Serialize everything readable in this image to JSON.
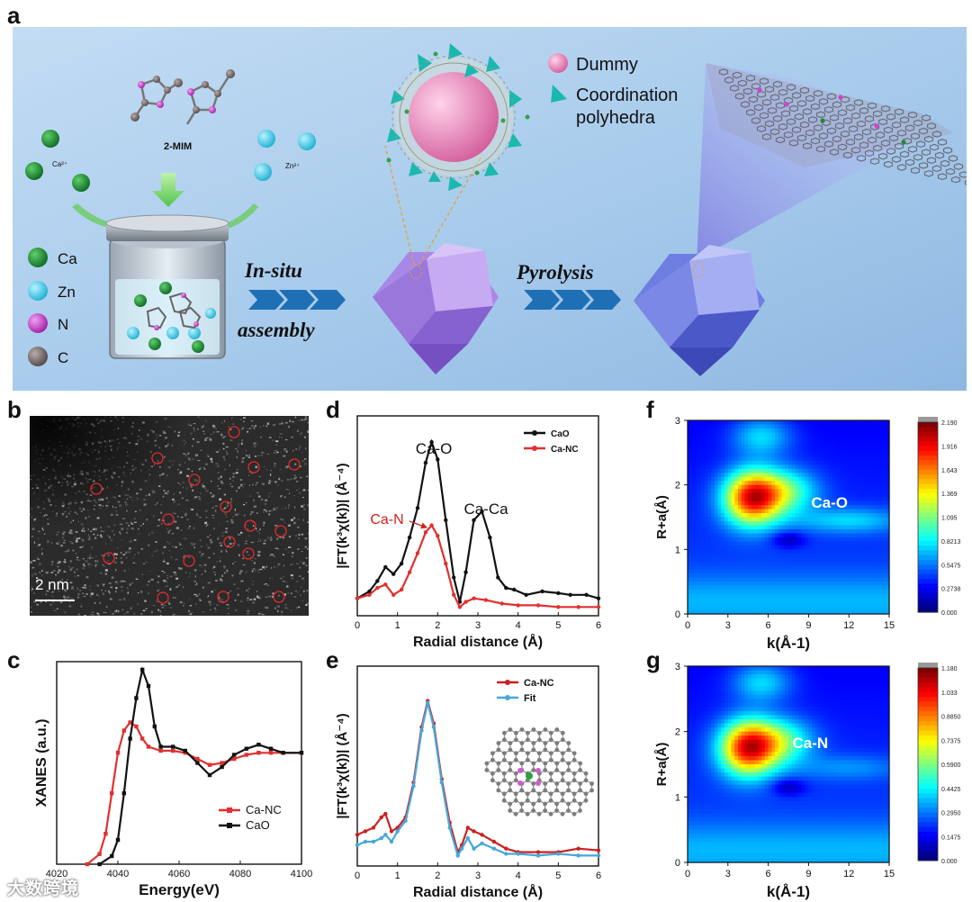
{
  "panel_labels": {
    "a": "a",
    "b": "b",
    "c": "c",
    "d": "d",
    "e": "e",
    "f": "f",
    "g": "g"
  },
  "panel_a": {
    "mim_label": "2-MIM",
    "ca_ion": "Ca²⁺",
    "zn_ion": "Zn²⁺",
    "legend_atoms": [
      {
        "label": "Ca",
        "color": "#1e8a3a"
      },
      {
        "label": "Zn",
        "color": "#3fc6de"
      },
      {
        "label": "N",
        "color": "#cc44cc"
      },
      {
        "label": "C",
        "color": "#7a6e6e"
      }
    ],
    "step1_line1": "In-situ",
    "step1_line2": "assembly",
    "step2": "Pyrolysis",
    "legend_dummy": "Dummy",
    "legend_coord_1": "Coordination",
    "legend_coord_2": "polyhedra",
    "colors": {
      "background": "#a9ccec",
      "arrow": "#1f6fb5",
      "dodeca": "#b38ee8",
      "dummy": "#e78bc0"
    }
  },
  "panel_b": {
    "scale_bar": "2 nm"
  },
  "chart_data": [
    {
      "panel": "c",
      "type": "line",
      "xlabel": "Energy(eV)",
      "ylabel": "XANES (a.u.)",
      "xlim": [
        4020,
        4100
      ],
      "xticks": [
        4020,
        4040,
        4060,
        4080,
        4100
      ],
      "series": [
        {
          "name": "Ca-NC",
          "color": "#e03030",
          "x": [
            4030,
            4034,
            4036,
            4038,
            4040,
            4042,
            4044,
            4046,
            4048,
            4050,
            4054,
            4058,
            4062,
            4066,
            4070,
            4074,
            4078,
            4082,
            4086,
            4090,
            4094,
            4100
          ],
          "y": [
            0.0,
            0.05,
            0.15,
            0.35,
            0.55,
            0.66,
            0.7,
            0.68,
            0.62,
            0.58,
            0.56,
            0.56,
            0.55,
            0.52,
            0.49,
            0.5,
            0.52,
            0.54,
            0.55,
            0.55,
            0.55,
            0.55
          ]
        },
        {
          "name": "CaO",
          "color": "#111111",
          "x": [
            4034,
            4038,
            4040,
            4042,
            4044,
            4046,
            4048,
            4050,
            4052,
            4054,
            4058,
            4062,
            4066,
            4070,
            4074,
            4078,
            4082,
            4086,
            4090,
            4094,
            4100
          ],
          "y": [
            0.0,
            0.04,
            0.12,
            0.35,
            0.62,
            0.82,
            0.96,
            0.88,
            0.68,
            0.58,
            0.58,
            0.56,
            0.5,
            0.44,
            0.48,
            0.54,
            0.57,
            0.59,
            0.57,
            0.55,
            0.55
          ]
        }
      ]
    },
    {
      "panel": "d",
      "type": "line",
      "xlabel": "Radial distance (Å)",
      "ylabel": "|FT(k³χ(k))| (Å⁻⁴)",
      "xlim": [
        0,
        6
      ],
      "xticks": [
        0,
        1,
        2,
        3,
        4,
        5,
        6
      ],
      "annotations": [
        "Ca-O",
        "Ca-Ca",
        "Ca-N"
      ],
      "series": [
        {
          "name": "CaO",
          "color": "#111111",
          "x": [
            0.0,
            0.3,
            0.5,
            0.7,
            0.9,
            1.1,
            1.3,
            1.5,
            1.7,
            1.85,
            2.0,
            2.2,
            2.4,
            2.55,
            2.7,
            2.9,
            3.1,
            3.3,
            3.5,
            3.7,
            3.9,
            4.2,
            4.6,
            5.0,
            5.3,
            5.7,
            6.0
          ],
          "y": [
            0.1,
            0.14,
            0.2,
            0.28,
            0.24,
            0.3,
            0.45,
            0.62,
            0.88,
            1.0,
            0.9,
            0.55,
            0.22,
            0.08,
            0.25,
            0.55,
            0.6,
            0.45,
            0.22,
            0.16,
            0.15,
            0.12,
            0.14,
            0.13,
            0.12,
            0.12,
            0.1
          ]
        },
        {
          "name": "Ca-NC",
          "color": "#e03030",
          "x": [
            0.0,
            0.3,
            0.5,
            0.7,
            0.9,
            1.1,
            1.3,
            1.5,
            1.7,
            1.85,
            2.0,
            2.2,
            2.4,
            2.55,
            2.7,
            2.9,
            3.2,
            3.6,
            4.0,
            4.5,
            5.0,
            5.5,
            6.0
          ],
          "y": [
            0.1,
            0.12,
            0.16,
            0.18,
            0.12,
            0.15,
            0.25,
            0.36,
            0.48,
            0.52,
            0.46,
            0.3,
            0.12,
            0.05,
            0.08,
            0.1,
            0.09,
            0.07,
            0.06,
            0.06,
            0.05,
            0.05,
            0.05
          ]
        }
      ]
    },
    {
      "panel": "e",
      "type": "line",
      "xlabel": "Radial distance (Å)",
      "ylabel": "|FT(k³χ(k))| (Å⁻⁴)",
      "xlim": [
        0,
        6
      ],
      "xticks": [
        0,
        1,
        2,
        3,
        4,
        5,
        6
      ],
      "series": [
        {
          "name": "Ca-NC",
          "color": "#cc2020",
          "x": [
            0.0,
            0.2,
            0.4,
            0.6,
            0.7,
            0.85,
            1.0,
            1.2,
            1.4,
            1.6,
            1.75,
            1.9,
            2.1,
            2.3,
            2.5,
            2.6,
            2.75,
            2.9,
            3.1,
            3.4,
            3.7,
            4.0,
            4.5,
            5.0,
            5.5,
            6.0
          ],
          "y": [
            0.18,
            0.2,
            0.22,
            0.28,
            0.3,
            0.2,
            0.22,
            0.28,
            0.48,
            0.8,
            0.95,
            0.82,
            0.5,
            0.25,
            0.08,
            0.12,
            0.22,
            0.2,
            0.18,
            0.14,
            0.1,
            0.08,
            0.08,
            0.08,
            0.1,
            0.09
          ]
        },
        {
          "name": "Fit",
          "color": "#46a8d8",
          "x": [
            0.0,
            0.2,
            0.4,
            0.6,
            0.7,
            0.85,
            1.0,
            1.2,
            1.4,
            1.6,
            1.75,
            1.9,
            2.1,
            2.3,
            2.5,
            2.6,
            2.75,
            2.9,
            3.1,
            3.4,
            3.7,
            4.0,
            4.5,
            5.0,
            5.5,
            6.0
          ],
          "y": [
            0.12,
            0.14,
            0.14,
            0.16,
            0.18,
            0.14,
            0.2,
            0.26,
            0.46,
            0.78,
            0.94,
            0.8,
            0.48,
            0.22,
            0.06,
            0.1,
            0.16,
            0.1,
            0.13,
            0.1,
            0.07,
            0.07,
            0.06,
            0.07,
            0.06,
            0.06
          ]
        }
      ]
    },
    {
      "panel": "f",
      "type": "heatmap",
      "xlabel": "k(Å-1)",
      "ylabel": "R+a(Å)",
      "xlim": [
        0,
        15
      ],
      "ylim": [
        0,
        3
      ],
      "xticks": [
        0,
        3,
        6,
        9,
        12,
        15
      ],
      "yticks": [
        0,
        1,
        2,
        3
      ],
      "peak": {
        "k": 4.8,
        "R": 1.8
      },
      "annotation": "Ca-O",
      "colorbar": [
        "2.190",
        "1.916",
        "1.643",
        "1.369",
        "1.095",
        "0.8213",
        "0.5475",
        "0.2738",
        "0.000"
      ]
    },
    {
      "panel": "g",
      "type": "heatmap",
      "xlabel": "k(Å-1)",
      "ylabel": "R+a(Å)",
      "xlim": [
        0,
        15
      ],
      "ylim": [
        0,
        3
      ],
      "xticks": [
        0,
        3,
        6,
        9,
        12,
        15
      ],
      "yticks": [
        0,
        1,
        2,
        3
      ],
      "peak": {
        "k": 4.5,
        "R": 1.75
      },
      "annotation": "Ca-N",
      "colorbar": [
        "1.180",
        "1.033",
        "0.8850",
        "0.7375",
        "0.5900",
        "0.4425",
        "0.2950",
        "0.1475",
        "0.000"
      ]
    }
  ],
  "watermark": "大数跨境"
}
